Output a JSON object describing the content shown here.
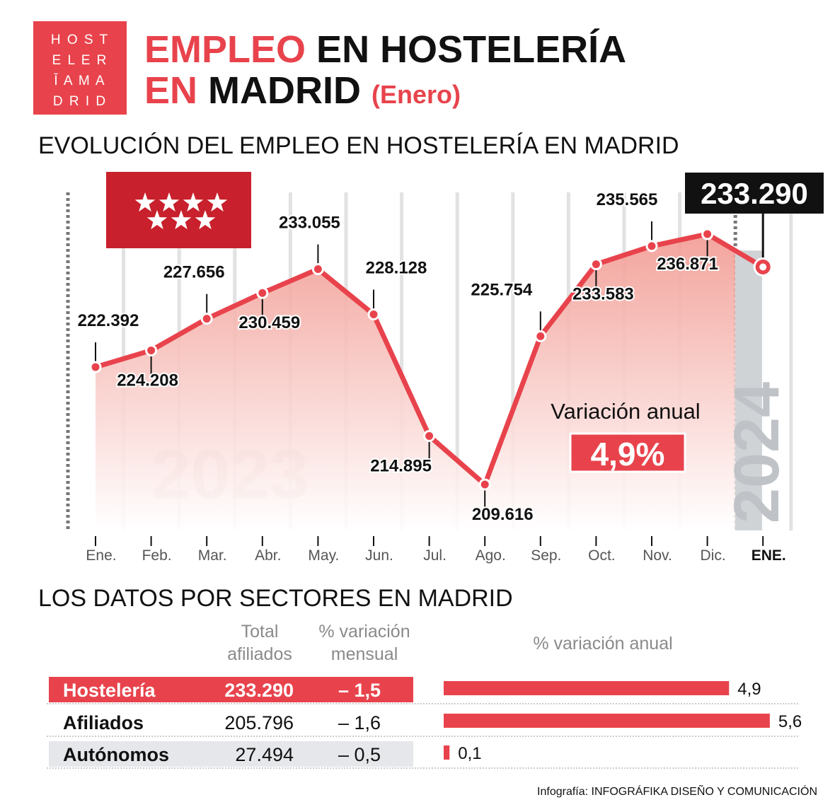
{
  "logo": {
    "lines": [
      "H O S T",
      "E L E R",
      "Ī A M A",
      "D R I D"
    ]
  },
  "title": {
    "line1_red": "EMPLEO",
    "line1_black": "EN HOSTELERÍA",
    "line2_red": "EN",
    "line2_black": "MADRID",
    "line2_suffix": "(Enero)"
  },
  "colors": {
    "accent": "#e8434c",
    "dark": "#111111",
    "grey": "#d0d3d6"
  },
  "chart_data": {
    "type": "line",
    "title": "EVOLUCIÓN DEL EMPLEO EN HOSTELERÍA EN MADRID",
    "categories": [
      "Ene.",
      "Feb.",
      "Mar.",
      "Abr.",
      "May.",
      "Jun.",
      "Jul.",
      "Ago.",
      "Sep.",
      "Oct.",
      "Nov.",
      "Dic.",
      "ENE."
    ],
    "values": [
      222392,
      224208,
      227656,
      230459,
      233055,
      228128,
      214895,
      209616,
      225754,
      233583,
      235565,
      236871,
      233290
    ],
    "labels": [
      "222.392",
      "224.208",
      "227.656",
      "230.459",
      "233.055",
      "228.128",
      "214.895",
      "209.616",
      "225.754",
      "233.583",
      "235.565",
      "236.871",
      "233.290"
    ],
    "year_labels": [
      "2023",
      "2024"
    ],
    "annotation": {
      "label": "Variación anual",
      "value": "4,9%"
    },
    "flag_icon": "madrid-flag-seven-stars"
  },
  "sectors": {
    "title": "LOS DATOS POR SECTORES EN MADRID",
    "headers": {
      "total": [
        "Total",
        "afiliados"
      ],
      "mensual": [
        "% variación",
        "mensual"
      ],
      "anual": "% variación anual"
    },
    "rows": [
      {
        "name": "Hostelería",
        "total": "233.290",
        "mensual": "– 1,5",
        "anual": 4.9,
        "anual_label": "4,9"
      },
      {
        "name": "Afiliados",
        "total": "205.796",
        "mensual": "– 1,6",
        "anual": 5.6,
        "anual_label": "5,6"
      },
      {
        "name": "Autónomos",
        "total": "27.494",
        "mensual": "– 0,5",
        "anual": 0.1,
        "anual_label": "0,1"
      }
    ]
  },
  "credit": {
    "prefix": "Infografía:",
    "name": "INFOGRÁFIKA DISEÑO Y COMUNICACIÓN"
  }
}
